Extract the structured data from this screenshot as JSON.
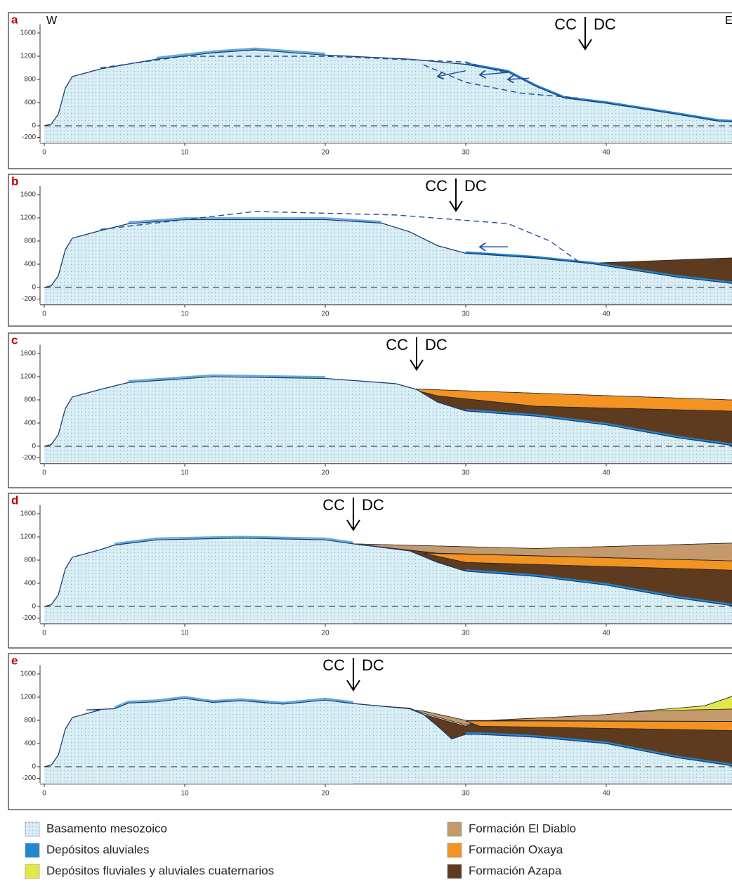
{
  "panels": [
    {
      "label": "a",
      "left_label": "W",
      "right_label": "E",
      "cc": "CC",
      "dc": "DC",
      "yticks": [
        1600,
        1200,
        800,
        400,
        0,
        -200
      ],
      "xticks": [
        0,
        10,
        20,
        30,
        40
      ]
    },
    {
      "label": "b",
      "cc": "CC",
      "dc": "DC",
      "yticks": [
        1600,
        1200,
        800,
        400,
        0,
        -200
      ],
      "xticks": [
        0,
        10,
        20,
        30,
        40
      ]
    },
    {
      "label": "c",
      "cc": "CC",
      "dc": "DC",
      "yticks": [
        1600,
        1200,
        800,
        400,
        0,
        -200
      ],
      "xticks": [
        0,
        10,
        20,
        30,
        40
      ]
    },
    {
      "label": "d",
      "cc": "CC",
      "dc": "DC",
      "yticks": [
        1600,
        1200,
        800,
        400,
        0,
        -200
      ],
      "xticks": [
        0,
        10,
        20,
        30,
        40
      ]
    },
    {
      "label": "e",
      "cc": "CC",
      "dc": "DC",
      "yticks": [
        1600,
        1200,
        800,
        400,
        0,
        -200
      ],
      "xticks": [
        0,
        10,
        20,
        30,
        40
      ]
    }
  ],
  "legend": [
    "Basamento mesozoico",
    "Depósitos aluviales",
    "Depósitos fluviales y aluviales cuaternarios",
    "Formación El Diablo",
    "Formación Oxaya",
    "Formación Azapa"
  ]
}
